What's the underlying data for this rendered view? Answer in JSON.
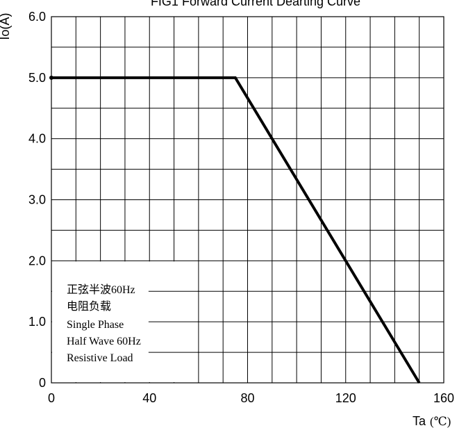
{
  "chart_data": {
    "type": "line",
    "title": "FIG1 Forward Current Dearting Curve",
    "ylabel": "Io(A)",
    "xlabel": "Ta",
    "xlabel_unit": "(℃)",
    "xlim": [
      0,
      160
    ],
    "ylim": [
      0,
      6.0
    ],
    "x_ticks": [
      "0",
      "40",
      "80",
      "120",
      "160"
    ],
    "y_ticks": [
      "0",
      "1.0",
      "2.0",
      "3.0",
      "4.0",
      "5.0",
      "6.0"
    ],
    "grid": true,
    "series": [
      {
        "x": [
          0,
          75,
          150
        ],
        "y": [
          5.0,
          5.0,
          0
        ]
      }
    ],
    "annotation_lines": [
      "正弦半波60Hz",
      "电阻负载",
      "Single Phase",
      "Half Wave 60Hz",
      "Resistive Load"
    ]
  }
}
